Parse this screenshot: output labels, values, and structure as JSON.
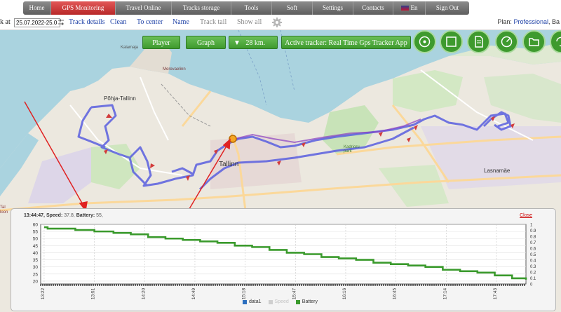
{
  "nav": {
    "items": [
      {
        "label": "Home",
        "active": false
      },
      {
        "label": "GPS Monitoring",
        "active": true
      },
      {
        "label": "Travel Online",
        "active": false
      },
      {
        "label": "Tracks storage",
        "active": false
      },
      {
        "label": "Tools",
        "active": false
      },
      {
        "label": "Soft",
        "active": false
      },
      {
        "label": "Settings",
        "active": false
      },
      {
        "label": "Contacts",
        "active": false
      },
      {
        "label": "En",
        "active": false
      },
      {
        "label": "Sign Out",
        "active": false
      }
    ]
  },
  "toolbar": {
    "track_at_label": "k at",
    "date_value": "25.07.2022-25.0",
    "track_details": "Track details",
    "clean": "Clean",
    "to_center": "To center",
    "name": "Name",
    "track_tail": "Track tail",
    "show_all": "Show all",
    "plan_label": "Plan:",
    "plan_value": "Professional",
    "plan_suffix": ", Ba"
  },
  "map_controls": {
    "player": "Player",
    "graph": "Graph",
    "distance_arrow": "▼",
    "distance": "28 km.",
    "active_tracker": "Active tracker: Real Time Gps Tracker App"
  },
  "map_labels": {
    "pohja_tallinn": "Põhja-Tallinn",
    "tallinn": "Tallinn",
    "lasnamae": "Lasnamäe",
    "kadrioru_park": "Kadrioru\npark",
    "merevaelinn": "Merevaelinn",
    "kalamaja": "Kalamaja"
  },
  "colors": {
    "accent_red": "#c62b2b",
    "button_green": "#3e9a2e",
    "track_blue": "#5a5fe0",
    "battery_green": "#3a9a2c",
    "data1_blue": "#2c6fbf",
    "speed_grey": "#cfcfcf"
  },
  "graph": {
    "time_label": "13:44:47",
    "speed_label": "Speed:",
    "speed_value": "37.8",
    "battery_label": "Battery:",
    "battery_value": "55",
    "close": "Close",
    "legend": [
      {
        "name": "data1",
        "color": "#2c6fbf"
      },
      {
        "name": "Speed",
        "color": "#cfcfcf"
      },
      {
        "name": "Battery",
        "color": "#3a9a2c"
      }
    ]
  },
  "chart_data": {
    "type": "line",
    "title": "",
    "xlabel": "",
    "ylabel": "",
    "x_ticks": [
      "13:22",
      "13:51",
      "14:20",
      "14:49",
      "15:18",
      "15:47",
      "16:16",
      "16:45",
      "17:14",
      "17:43"
    ],
    "y_left_ticks": [
      20,
      25,
      30,
      35,
      40,
      45,
      50,
      55,
      60
    ],
    "y_right_ticks": [
      0,
      0.1,
      0.2,
      0.3,
      0.4,
      0.5,
      0.6,
      0.7,
      0.8,
      0.9,
      1
    ],
    "ylim_left": [
      18,
      60
    ],
    "ylim_right": [
      0,
      1
    ],
    "grid": true,
    "series": [
      {
        "name": "Battery",
        "color": "#3a9a2c",
        "x": [
          "13:22",
          "13:24",
          "13:40",
          "13:51",
          "14:02",
          "14:12",
          "14:22",
          "14:32",
          "14:42",
          "14:52",
          "15:02",
          "15:12",
          "15:22",
          "15:32",
          "15:42",
          "15:52",
          "16:02",
          "16:12",
          "16:22",
          "16:32",
          "16:42",
          "16:52",
          "17:02",
          "17:12",
          "17:22",
          "17:32",
          "17:42",
          "17:52",
          "18:00"
        ],
        "values": [
          58,
          57,
          56,
          55,
          54,
          53,
          51,
          50,
          49,
          48,
          47,
          45,
          44,
          42,
          40,
          39,
          37,
          36,
          35,
          33,
          32,
          31,
          30,
          28,
          27,
          26,
          24,
          22,
          21
        ]
      }
    ]
  }
}
